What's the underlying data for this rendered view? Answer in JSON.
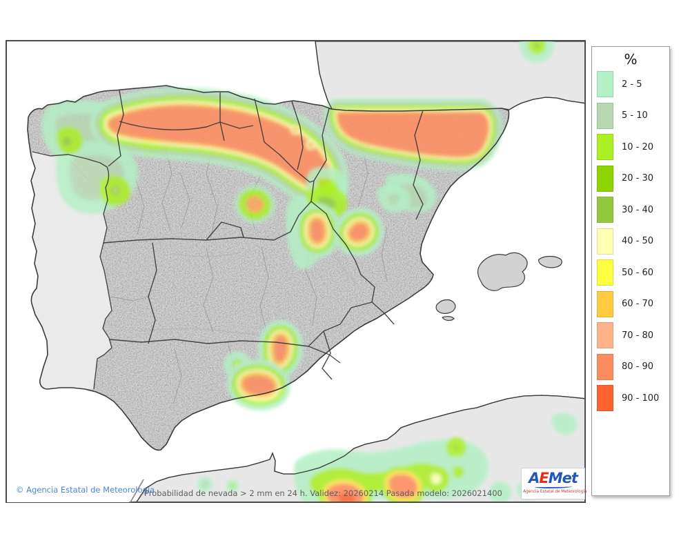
{
  "map": {
    "attribution": "© Agencia Estatal de Meteorología",
    "product_title": "Probabilidad de nevada > 2 mm en 24 h. Validez: 20260214 Pasada modelo: 2026021400",
    "colors": {
      "sea": "#ffffff",
      "foreign_land": "#e7e7e7",
      "spain_land": "#d6d6d6",
      "portugal_land": "#eaeaea",
      "coastline": "#3a3a3a",
      "region_border": "#333333",
      "province_border": "#9a9a9a"
    }
  },
  "legend": {
    "title": "%",
    "items": [
      {
        "label": "2 - 5",
        "color": "#b4f0c5"
      },
      {
        "label": "5 - 10",
        "color": "#b6d7b0"
      },
      {
        "label": "10 - 20",
        "color": "#abef25"
      },
      {
        "label": "20 - 30",
        "color": "#8cd500"
      },
      {
        "label": "30 - 40",
        "color": "#94c83e"
      },
      {
        "label": "40 - 50",
        "color": "#ffffb3"
      },
      {
        "label": "50 - 60",
        "color": "#ffff42"
      },
      {
        "label": "60 - 70",
        "color": "#ffc940"
      },
      {
        "label": "70 - 80",
        "color": "#ffb38b"
      },
      {
        "label": "80 - 90",
        "color": "#ff8c5f"
      },
      {
        "label": "90 - 100",
        "color": "#ff6430"
      }
    ]
  },
  "logo": {
    "parts": [
      {
        "text": "A",
        "color": "#2257b8"
      },
      {
        "text": "E",
        "color": "#e0301e"
      },
      {
        "text": "Met",
        "color": "#2257b8"
      }
    ],
    "tagline": "Agencia Estatal de Meteorología",
    "tagline_color": "#c03a2e"
  }
}
